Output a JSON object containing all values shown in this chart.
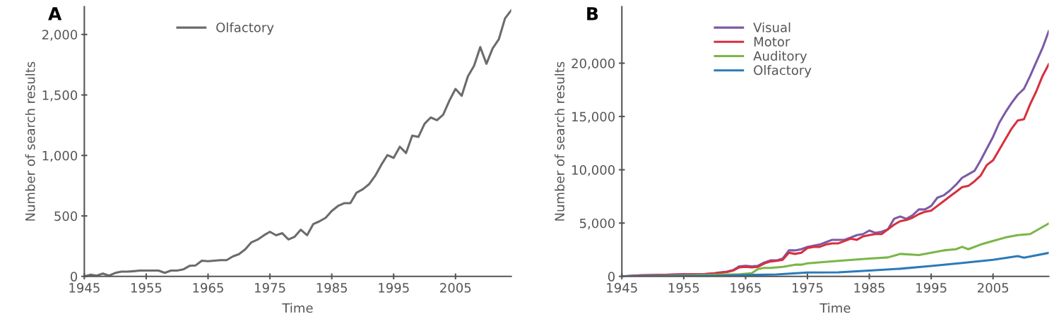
{
  "chart_data": [
    {
      "type": "line",
      "title": "A",
      "xlabel": "Time",
      "ylabel": "Number of search results",
      "xlim": [
        1945,
        2014
      ],
      "xticks": [
        1945,
        1955,
        1965,
        1975,
        1985,
        1995,
        2005
      ],
      "ylim": [
        0,
        2230
      ],
      "yticks": [
        0,
        {
          "value": 500,
          "label": "500"
        },
        {
          "value": 1000,
          "label": "1,000"
        },
        {
          "value": 1500,
          "label": "1,500"
        },
        {
          "value": 2000,
          "label": "2,000"
        }
      ],
      "legend": "top left",
      "grid": false,
      "marker": "none",
      "line_style": "solid",
      "series": [
        {
          "name": "Olfactory",
          "color": "#6b6b6b",
          "x": [
            1945,
            1946,
            1947,
            1948,
            1949,
            1950,
            1951,
            1952,
            1953,
            1954,
            1955,
            1956,
            1957,
            1958,
            1959,
            1960,
            1961,
            1962,
            1963,
            1964,
            1965,
            1966,
            1967,
            1968,
            1969,
            1970,
            1971,
            1972,
            1973,
            1974,
            1975,
            1976,
            1977,
            1978,
            1979,
            1980,
            1981,
            1982,
            1983,
            1984,
            1985,
            1986,
            1987,
            1988,
            1989,
            1990,
            1991,
            1992,
            1993,
            1994,
            1995,
            1996,
            1997,
            1998,
            1999,
            2000,
            2001,
            2002,
            2003,
            2004,
            2005,
            2006,
            2007,
            2008,
            2009,
            2010,
            2011,
            2012,
            2013,
            2014
          ],
          "values": [
            0,
            14,
            6,
            23,
            6,
            29,
            39,
            39,
            43,
            48,
            48,
            48,
            48,
            29,
            48,
            48,
            58,
            87,
            91,
            130,
            126,
            130,
            134,
            134,
            165,
            184,
            223,
            281,
            304,
            339,
            369,
            340,
            357,
            305,
            328,
            386,
            340,
            432,
            455,
            484,
            541,
            582,
            605,
            605,
            692,
            720,
            761,
            830,
            922,
            1003,
            980,
            1072,
            1020,
            1164,
            1153,
            1262,
            1314,
            1291,
            1337,
            1452,
            1550,
            1493,
            1654,
            1741,
            1896,
            1758,
            1885,
            1960,
            2133,
            2200
          ]
        }
      ]
    },
    {
      "type": "line",
      "title": "B",
      "xlabel": "Time",
      "ylabel": "Number of search results",
      "xlim": [
        1945,
        2014
      ],
      "xticks": [
        1945,
        1955,
        1965,
        1975,
        1985,
        1995,
        2005
      ],
      "ylim": [
        0,
        25300
      ],
      "yticks": [
        0,
        {
          "value": 5000,
          "label": "5,000"
        },
        {
          "value": 10000,
          "label": "10,000"
        },
        {
          "value": 15000,
          "label": "15,000"
        },
        {
          "value": 20000,
          "label": "20,000"
        }
      ],
      "legend": "top left",
      "grid": false,
      "marker": "none",
      "line_style": "solid",
      "series": [
        {
          "name": "Visual",
          "color": "#7b5aa6",
          "x": [
            1945,
            1948,
            1952,
            1955,
            1958,
            1960,
            1962,
            1963,
            1964,
            1965,
            1966,
            1967,
            1968,
            1969,
            1970,
            1971,
            1972,
            1973,
            1974,
            1975,
            1976,
            1977,
            1978,
            1979,
            1980,
            1981,
            1982,
            1983,
            1984,
            1985,
            1986,
            1987,
            1988,
            1989,
            1990,
            1991,
            1992,
            1993,
            1994,
            1995,
            1996,
            1997,
            1998,
            1999,
            2000,
            2001,
            2002,
            2003,
            2004,
            2005,
            2006,
            2007,
            2008,
            2009,
            2010,
            2011,
            2012,
            2013,
            2014
          ],
          "values": [
            0,
            100,
            150,
            200,
            200,
            300,
            450,
            600,
            950,
            1000,
            950,
            1000,
            1300,
            1500,
            1500,
            1670,
            2440,
            2440,
            2550,
            2770,
            2880,
            2990,
            3210,
            3430,
            3430,
            3430,
            3650,
            3870,
            3970,
            4300,
            4080,
            4190,
            4410,
            5400,
            5620,
            5400,
            5730,
            6280,
            6280,
            6610,
            7380,
            7600,
            8040,
            8590,
            9250,
            9570,
            9900,
            10890,
            11990,
            13090,
            14410,
            15390,
            16270,
            17040,
            17590,
            18800,
            20120,
            21430,
            23000
          ]
        },
        {
          "name": "Motor",
          "color": "#d7303f",
          "x": [
            1945,
            1948,
            1952,
            1955,
            1958,
            1960,
            1962,
            1963,
            1964,
            1965,
            1966,
            1967,
            1968,
            1969,
            1970,
            1971,
            1972,
            1973,
            1974,
            1975,
            1976,
            1977,
            1978,
            1979,
            1980,
            1981,
            1982,
            1983,
            1984,
            1985,
            1986,
            1987,
            1988,
            1989,
            1990,
            1991,
            1992,
            1993,
            1994,
            1995,
            1996,
            1997,
            1998,
            1999,
            2000,
            2001,
            2002,
            2003,
            2004,
            2005,
            2006,
            2007,
            2008,
            2009,
            2010,
            2011,
            2012,
            2013,
            2014
          ],
          "values": [
            0,
            100,
            150,
            200,
            200,
            280,
            420,
            550,
            850,
            900,
            850,
            900,
            1200,
            1400,
            1450,
            1560,
            2220,
            2110,
            2220,
            2660,
            2770,
            2770,
            2990,
            3100,
            3100,
            3320,
            3540,
            3430,
            3760,
            3870,
            3970,
            3970,
            4410,
            4850,
            5180,
            5290,
            5510,
            5840,
            6060,
            6170,
            6610,
            7050,
            7490,
            7930,
            8370,
            8480,
            8920,
            9460,
            10450,
            10890,
            11880,
            12870,
            13860,
            14630,
            14740,
            16160,
            17370,
            18800,
            19900
          ]
        },
        {
          "name": "Auditory",
          "color": "#7ab648",
          "x": [
            1945,
            1955,
            1960,
            1964,
            1966,
            1967,
            1968,
            1969,
            1970,
            1971,
            1972,
            1973,
            1974,
            1975,
            1980,
            1985,
            1988,
            1990,
            1993,
            1995,
            1997,
            1999,
            2000,
            2001,
            2003,
            2005,
            2007,
            2009,
            2011,
            2013,
            2014
          ],
          "values": [
            0,
            100,
            150,
            200,
            300,
            700,
            800,
            800,
            850,
            900,
            1000,
            1100,
            1100,
            1230,
            1450,
            1670,
            1780,
            2110,
            2000,
            2220,
            2440,
            2550,
            2770,
            2550,
            2990,
            3320,
            3650,
            3870,
            3970,
            4630,
            4960
          ]
        },
        {
          "name": "Olfactory",
          "color": "#2b7bb9",
          "x": [
            1945,
            1950,
            1955,
            1960,
            1965,
            1970,
            1975,
            1980,
            1985,
            1990,
            1995,
            2000,
            2005,
            2009,
            2010,
            2014
          ],
          "values": [
            0,
            29,
            48,
            48,
            126,
            184,
            369,
            386,
            541,
            720,
            980,
            1262,
            1550,
            1896,
            1758,
            2200
          ]
        }
      ]
    }
  ]
}
